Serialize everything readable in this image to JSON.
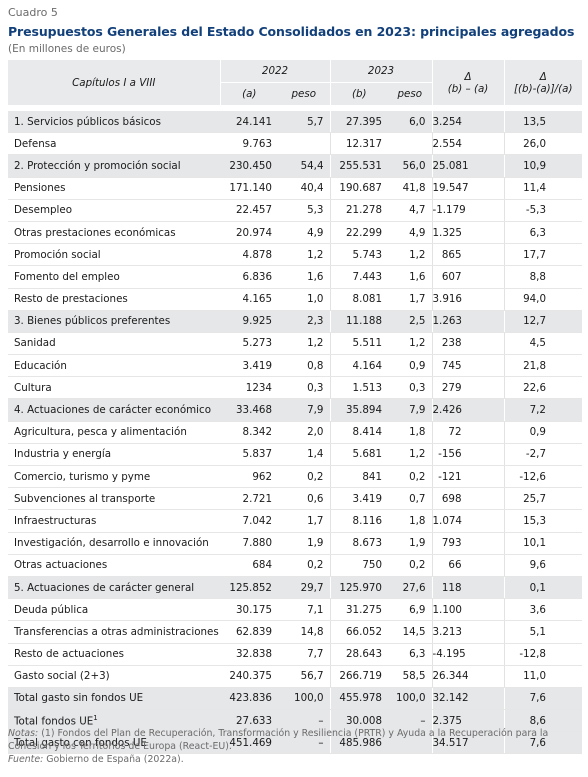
{
  "label": "Cuadro 5",
  "title": "Presupuestos Generales del Estado Consolidados en 2023: principales agregados",
  "subtitle": "(En millones de euros)",
  "header": {
    "chapters": "Capítulos I a VIII",
    "y2022": "2022",
    "y2023": "2023",
    "delta1": "Δ",
    "delta2": "Δ",
    "a": "(a)",
    "peso_a": "peso",
    "b": "(b)",
    "peso_b": "peso",
    "ba": "(b) – (a)",
    "pct": "[(b)-(a)]/(a)"
  },
  "rows": [
    {
      "name": "1. Servicios públicos básicos",
      "a": "24.141",
      "pa": "5,7",
      "b": "27.395",
      "pb": "6,0",
      "d": "3.254",
      "p": "13,5",
      "shade": true
    },
    {
      "name": "Defensa",
      "a": "9.763",
      "pa": "",
      "b": "12.317",
      "pb": "",
      "d": "2.554",
      "p": "26,0"
    },
    {
      "name": "2. Protección y promoción social",
      "a": "230.450",
      "pa": "54,4",
      "b": "255.531",
      "pb": "56,0",
      "d": "25.081",
      "p": "10,9",
      "shade": true
    },
    {
      "name": "Pensiones",
      "a": "171.140",
      "pa": "40,4",
      "b": "190.687",
      "pb": "41,8",
      "d": "19.547",
      "p": "11,4"
    },
    {
      "name": "Desempleo",
      "a": "22.457",
      "pa": "5,3",
      "b": "21.278",
      "pb": "4,7",
      "d": "-1.179",
      "p": "-5,3"
    },
    {
      "name": "Otras prestaciones económicas",
      "a": "20.974",
      "pa": "4,9",
      "b": "22.299",
      "pb": "4,9",
      "d": "1.325",
      "p": "6,3"
    },
    {
      "name": "Promoción social",
      "a": "4.878",
      "pa": "1,2",
      "b": "5.743",
      "pb": "1,2",
      "d": "865",
      "p": "17,7"
    },
    {
      "name": "Fomento del empleo",
      "a": "6.836",
      "pa": "1,6",
      "b": "7.443",
      "pb": "1,6",
      "d": "607",
      "p": "8,8"
    },
    {
      "name": "Resto de prestaciones",
      "a": "4.165",
      "pa": "1,0",
      "b": "8.081",
      "pb": "1,7",
      "d": "3.916",
      "p": "94,0"
    },
    {
      "name": "3. Bienes públicos preferentes",
      "a": "9.925",
      "pa": "2,3",
      "b": "11.188",
      "pb": "2,5",
      "d": "1.263",
      "p": "12,7",
      "shade": true
    },
    {
      "name": "Sanidad",
      "a": "5.273",
      "pa": "1,2",
      "b": "5.511",
      "pb": "1,2",
      "d": "238",
      "p": "4,5"
    },
    {
      "name": "Educación",
      "a": "3.419",
      "pa": "0,8",
      "b": "4.164",
      "pb": "0,9",
      "d": "745",
      "p": "21,8"
    },
    {
      "name": "Cultura",
      "a": "1234",
      "pa": "0,3",
      "b": "1.513",
      "pb": "0,3",
      "d": "279",
      "p": "22,6"
    },
    {
      "name": "4. Actuaciones de carácter económico",
      "a": "33.468",
      "pa": "7,9",
      "b": "35.894",
      "pb": "7,9",
      "d": "2.426",
      "p": "7,2",
      "shade": true
    },
    {
      "name": "Agricultura, pesca y alimentación",
      "a": "8.342",
      "pa": "2,0",
      "b": "8.414",
      "pb": "1,8",
      "d": "72",
      "p": "0,9"
    },
    {
      "name": "Industria y energía",
      "a": "5.837",
      "pa": "1,4",
      "b": "5.681",
      "pb": "1,2",
      "d": "-156",
      "p": "-2,7"
    },
    {
      "name": "Comercio, turismo y pyme",
      "a": "962",
      "pa": "0,2",
      "b": "841",
      "pb": "0,2",
      "d": "-121",
      "p": "-12,6"
    },
    {
      "name": "Subvenciones al transporte",
      "a": "2.721",
      "pa": "0,6",
      "b": "3.419",
      "pb": "0,7",
      "d": "698",
      "p": "25,7"
    },
    {
      "name": "Infraestructuras",
      "a": "7.042",
      "pa": "1,7",
      "b": "8.116",
      "pb": "1,8",
      "d": "1.074",
      "p": "15,3"
    },
    {
      "name": "Investigación, desarrollo e innovación",
      "a": "7.880",
      "pa": "1,9",
      "b": "8.673",
      "pb": "1,9",
      "d": "793",
      "p": "10,1"
    },
    {
      "name": "Otras actuaciones",
      "a": "684",
      "pa": "0,2",
      "b": "750",
      "pb": "0,2",
      "d": "66",
      "p": "9,6"
    },
    {
      "name": "5. Actuaciones de carácter general",
      "a": "125.852",
      "pa": "29,7",
      "b": "125.970",
      "pb": "27,6",
      "d": "118",
      "p": "0,1",
      "shade": true
    },
    {
      "name": "Deuda pública",
      "a": "30.175",
      "pa": "7,1",
      "b": "31.275",
      "pb": "6,9",
      "d": "1.100",
      "p": "3,6"
    },
    {
      "name": "Transferencias a otras administraciones",
      "a": "62.839",
      "pa": "14,8",
      "b": "66.052",
      "pb": "14,5",
      "d": "3.213",
      "p": "5,1"
    },
    {
      "name": "Resto de actuaciones",
      "a": "32.838",
      "pa": "7,7",
      "b": "28.643",
      "pb": "6,3",
      "d": "-4.195",
      "p": "-12,8"
    },
    {
      "name": "Gasto social (2+3)",
      "a": "240.375",
      "pa": "56,7",
      "b": "266.719",
      "pb": "58,5",
      "d": "26.344",
      "p": "11,0"
    },
    {
      "name": "Total gasto sin fondos UE",
      "a": "423.836",
      "pa": "100,0",
      "b": "455.978",
      "pb": "100,0",
      "d": "32.142",
      "p": "7,6",
      "shade": true
    },
    {
      "name": "Total fondos UE",
      "sup": "1",
      "a": "27.633",
      "pa": "–",
      "b": "30.008",
      "pb": "–",
      "d": "2.375",
      "p": "8,6",
      "shade": true
    },
    {
      "name": "Total gasto con fondos UE",
      "a": "451.469",
      "pa": "–",
      "b": "485.986",
      "pb": "",
      "d": "34.517",
      "p": "7,6",
      "shade": true
    }
  ],
  "notes": {
    "notes_label": "Notas:",
    "notes_text": " (1) Fondos del Plan de Recuperación, Transformación y Resiliencia (PRTR) y Ayuda a la Recuperación para la Cohesión y los Territorios de Europa (React-EU).",
    "source_label": "Fuente:",
    "source_text": " Gobierno de España (2022a)."
  }
}
